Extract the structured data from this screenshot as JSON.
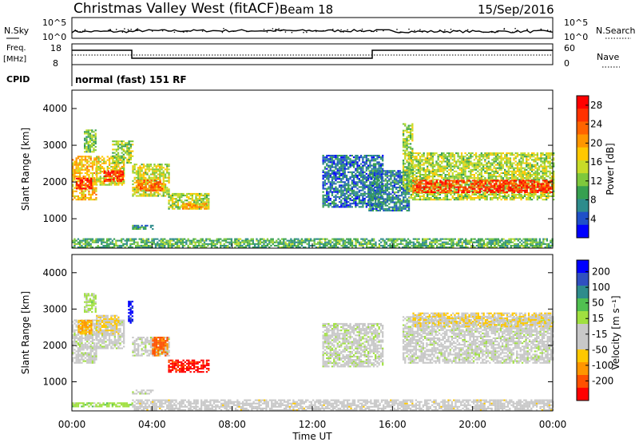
{
  "header": {
    "title": "Christmas Valley West (fitACF)",
    "beam": "Beam 18",
    "date": "15/Sep/2016"
  },
  "top_panels": {
    "nsky_label": "N.Sky",
    "nsky_ticks": [
      "10^5",
      "10^0"
    ],
    "nsearch_label": "N.Search",
    "freq_label_1": "Freq.",
    "freq_label_2": "[MHz]",
    "freq_ticks": [
      "18",
      "8"
    ],
    "nave_label": "Nave",
    "nave_ticks": [
      "60",
      "0"
    ],
    "cpid_label": "CPID",
    "cpid_text": "normal (fast) 151 RF"
  },
  "x_axis": {
    "label": "Time UT",
    "ticks": [
      "00:00",
      "04:00",
      "08:00",
      "12:00",
      "16:00",
      "20:00",
      "00:00"
    ]
  },
  "colors": {
    "power_scale": [
      "#0000ff",
      "#1f50c8",
      "#2e8c8c",
      "#37a050",
      "#7ec83c",
      "#c8dc28",
      "#ffc800",
      "#ff9600",
      "#ff6400",
      "#ff3200",
      "#ff0000"
    ],
    "velocity_scale": [
      "#ff0000",
      "#ff5000",
      "#ff9600",
      "#ffc800",
      "#c8c8c8",
      "#c8c8c8",
      "#a0e040",
      "#50c050",
      "#2e8c8c",
      "#3050c0",
      "#0000ff"
    ]
  },
  "chart_data": [
    {
      "type": "heatmap",
      "name": "power",
      "ylabel": "Slant Range [km]",
      "yticks": [
        "1000",
        "2000",
        "3000",
        "4000"
      ],
      "ylim": [
        200,
        4500
      ],
      "xlim_hours": [
        0,
        24
      ],
      "colorbar_label": "Power [dB]",
      "colorbar_ticks": [
        "4",
        "8",
        "12",
        "16",
        "20",
        "24",
        "28"
      ],
      "crange": [
        0,
        30
      ],
      "regions": [
        {
          "t0": 0.0,
          "t1": 1.2,
          "r0": 1500,
          "r1": 2700,
          "v": 18
        },
        {
          "t0": 0.2,
          "t1": 1.0,
          "r0": 1800,
          "r1": 2100,
          "v": 27
        },
        {
          "t0": 0.6,
          "t1": 1.2,
          "r0": 2800,
          "r1": 3400,
          "v": 12
        },
        {
          "t0": 1.2,
          "t1": 2.6,
          "r0": 1900,
          "r1": 2700,
          "v": 16
        },
        {
          "t0": 1.6,
          "t1": 2.5,
          "r0": 2000,
          "r1": 2300,
          "v": 26
        },
        {
          "t0": 2.0,
          "t1": 3.0,
          "r0": 2500,
          "r1": 3100,
          "v": 13
        },
        {
          "t0": 3.0,
          "t1": 4.8,
          "r0": 1600,
          "r1": 2500,
          "v": 15
        },
        {
          "t0": 3.2,
          "t1": 4.6,
          "r0": 1750,
          "r1": 2050,
          "v": 23
        },
        {
          "t0": 4.8,
          "t1": 6.8,
          "r0": 1250,
          "r1": 1700,
          "v": 14
        },
        {
          "t0": 5.5,
          "t1": 6.8,
          "r0": 1250,
          "r1": 1400,
          "v": 20
        },
        {
          "t0": 3.0,
          "t1": 4.0,
          "r0": 700,
          "r1": 800,
          "v": 8
        },
        {
          "t0": 12.5,
          "t1": 15.5,
          "r0": 1300,
          "r1": 2700,
          "v": 6
        },
        {
          "t0": 14.8,
          "t1": 16.8,
          "r0": 1200,
          "r1": 2300,
          "v": 7
        },
        {
          "t0": 16.5,
          "t1": 17.0,
          "r0": 1800,
          "r1": 3600,
          "v": 13
        },
        {
          "t0": 16.8,
          "t1": 24.0,
          "r0": 1500,
          "r1": 2800,
          "v": 14
        },
        {
          "t0": 17.0,
          "t1": 24.0,
          "r0": 1700,
          "r1": 2050,
          "v": 26
        },
        {
          "t0": 0.0,
          "t1": 24.0,
          "r0": 200,
          "r1": 450,
          "v": 10
        }
      ]
    },
    {
      "type": "heatmap",
      "name": "velocity",
      "ylabel": "Slant Range [km]",
      "yticks": [
        "1000",
        "2000",
        "3000",
        "4000"
      ],
      "ylim": [
        200,
        4500
      ],
      "xlim_hours": [
        0,
        24
      ],
      "colorbar_label": "Velocity [m s⁻¹]",
      "colorbar_ticks": [
        "200",
        "100",
        "50",
        "15",
        "-15",
        "-50",
        "-100",
        "-200"
      ],
      "crange": [
        -250,
        250
      ],
      "regions": [
        {
          "t0": 0.0,
          "t1": 1.2,
          "r0": 1500,
          "r1": 2700,
          "v": 0
        },
        {
          "t0": 0.3,
          "t1": 1.0,
          "r0": 2300,
          "r1": 2700,
          "v": -120
        },
        {
          "t0": 0.6,
          "t1": 1.2,
          "r0": 2900,
          "r1": 3400,
          "v": 40
        },
        {
          "t0": 1.2,
          "t1": 2.6,
          "r0": 1900,
          "r1": 2700,
          "v": 0
        },
        {
          "t0": 1.2,
          "t1": 2.3,
          "r0": 2300,
          "r1": 2800,
          "v": -70
        },
        {
          "t0": 2.8,
          "t1": 3.0,
          "r0": 2600,
          "r1": 3200,
          "v": 220
        },
        {
          "t0": 3.0,
          "t1": 4.8,
          "r0": 1700,
          "r1": 2200,
          "v": 0
        },
        {
          "t0": 4.0,
          "t1": 4.8,
          "r0": 1700,
          "r1": 2200,
          "v": -170
        },
        {
          "t0": 4.8,
          "t1": 6.8,
          "r0": 1250,
          "r1": 1600,
          "v": -220
        },
        {
          "t0": 3.0,
          "t1": 4.0,
          "r0": 650,
          "r1": 750,
          "v": 0
        },
        {
          "t0": 0.0,
          "t1": 3.0,
          "r0": 300,
          "r1": 420,
          "v": 50
        },
        {
          "t0": 12.5,
          "t1": 15.5,
          "r0": 1400,
          "r1": 2600,
          "v": 5
        },
        {
          "t0": 16.5,
          "t1": 24.0,
          "r0": 1500,
          "r1": 2800,
          "v": 0
        },
        {
          "t0": 17.0,
          "t1": 24.0,
          "r0": 2500,
          "r1": 2900,
          "v": -60
        },
        {
          "t0": 3.0,
          "t1": 24.0,
          "r0": 200,
          "r1": 500,
          "v": -40
        }
      ]
    }
  ]
}
